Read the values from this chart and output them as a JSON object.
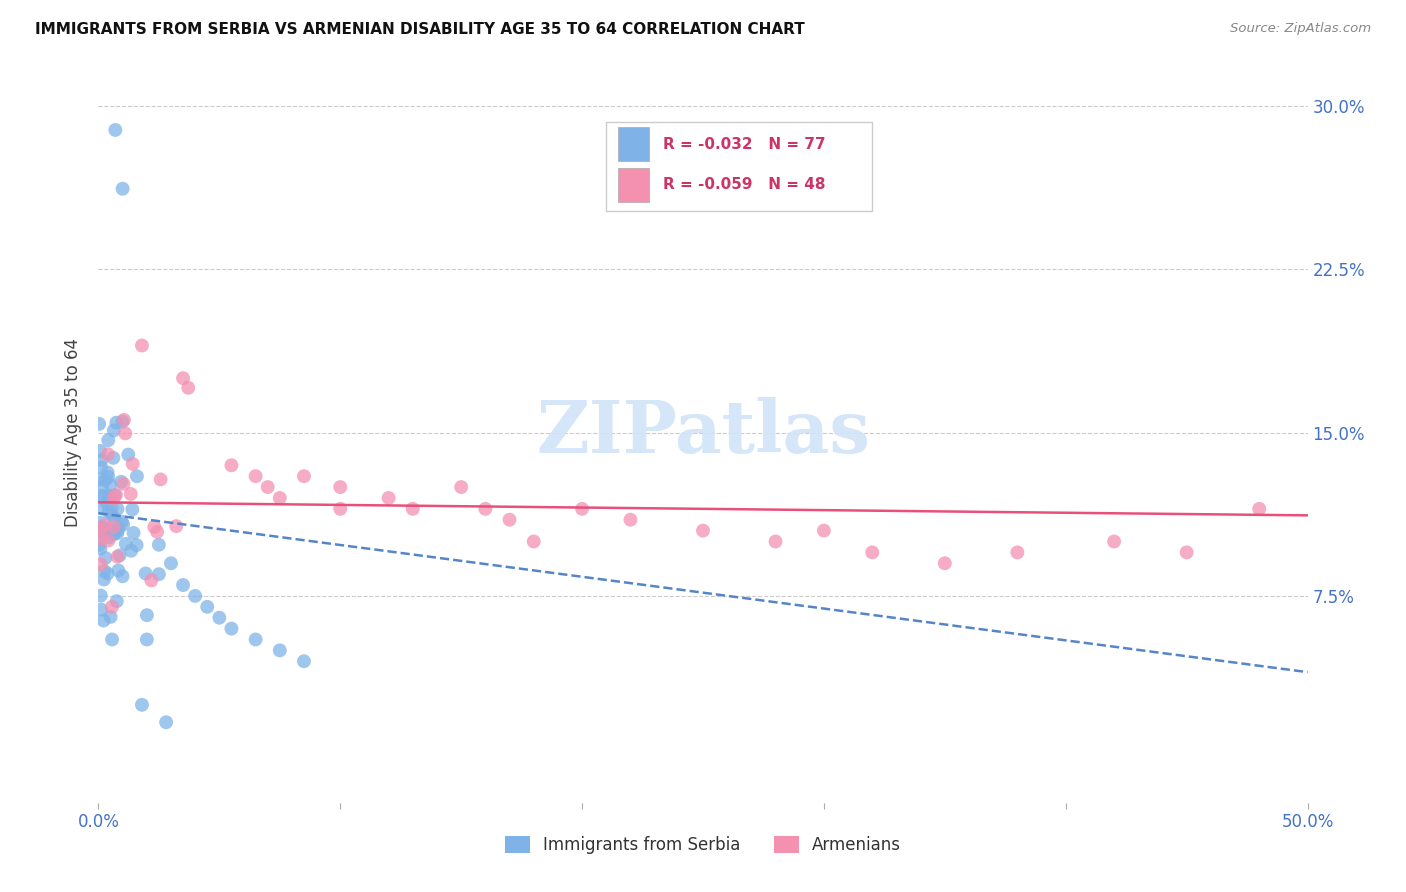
{
  "title": "IMMIGRANTS FROM SERBIA VS ARMENIAN DISABILITY AGE 35 TO 64 CORRELATION CHART",
  "source": "Source: ZipAtlas.com",
  "ylabel": "Disability Age 35 to 64",
  "xlim": [
    0.0,
    0.5
  ],
  "ylim": [
    -0.02,
    0.32
  ],
  "yticks": [
    0.075,
    0.15,
    0.225,
    0.3
  ],
  "ytick_labels": [
    "7.5%",
    "15.0%",
    "22.5%",
    "30.0%"
  ],
  "xtick_positions": [
    0.0,
    0.1,
    0.2,
    0.3,
    0.4,
    0.5
  ],
  "xticklabels": [
    "0.0%",
    "",
    "",
    "",
    "",
    "50.0%"
  ],
  "background_color": "#ffffff",
  "grid_color": "#cccccc",
  "watermark_text": "ZIPatlas",
  "watermark_color": "#d0e4f7",
  "serbia_color": "#7fb3e8",
  "armenian_color": "#f490b0",
  "serbia_line_color": "#5585c8",
  "armenian_line_color": "#e8507a",
  "legend_r_serbia": "R = -0.032",
  "legend_n_serbia": "N = 77",
  "legend_r_armenian": "R = -0.059",
  "legend_n_armenian": "N = 48",
  "serbia_line_x0": 0.0,
  "serbia_line_x1": 0.5,
  "serbia_line_y0": 0.113,
  "serbia_line_y1": 0.04,
  "armenian_line_x0": 0.0,
  "armenian_line_x1": 0.5,
  "armenian_line_y0": 0.118,
  "armenian_line_y1": 0.112
}
